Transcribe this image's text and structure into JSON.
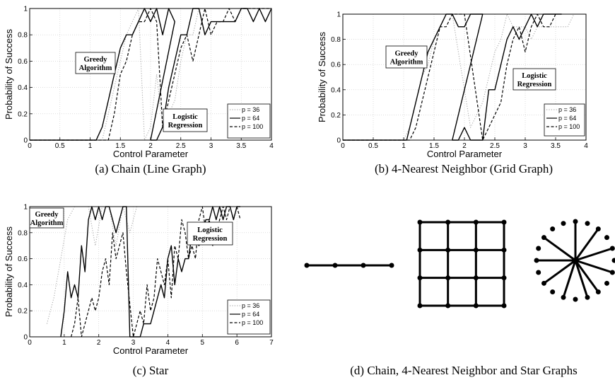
{
  "chart_data": [
    {
      "type": "line",
      "xlabel": "Control Parameter",
      "ylabel": "Probability of Success",
      "xlim": [
        0,
        4
      ],
      "ylim": [
        0,
        1
      ],
      "xticks": [
        "0",
        "0.5",
        "1",
        "1.5",
        "2",
        "2.5",
        "3",
        "3.5",
        "4"
      ],
      "yticks": [
        "0",
        "0.2",
        "0.4",
        "0.6",
        "0.8",
        "1"
      ],
      "grid": true,
      "legend_position": "bottom-right",
      "caption": "(a) Chain (Line Graph)",
      "annotations": [
        "Greedy Algorithm",
        "Logistic Regression"
      ],
      "series": [
        {
          "name": "p = 36",
          "style": "dotted",
          "color": "#aaaaaa",
          "x": [
            0,
            1.2,
            1.3,
            1.4,
            1.5,
            1.6,
            1.7,
            1.8,
            1.9,
            2.0,
            2.1,
            2.2,
            2.3,
            2.4,
            2.5,
            2.6,
            2.7,
            2.8,
            2.9,
            3.0,
            3.1,
            3.2,
            3.3,
            3.4,
            3.5,
            3.6,
            3.7,
            3.8,
            3.9,
            4.0
          ],
          "y": [
            0,
            0,
            0.2,
            0.4,
            0.6,
            0.8,
            0.9,
            1.0,
            0,
            0.1,
            0.5,
            0.1,
            0.2,
            0.3,
            0.6,
            0.8,
            0.8,
            1.0,
            1.0,
            1.0,
            1.0,
            1.0,
            1.0,
            1.0,
            1.0,
            1.0,
            1.0,
            1.0,
            1.0,
            1.0
          ]
        },
        {
          "name": "p = 64",
          "style": "solid",
          "color": "#000000",
          "x": [
            0,
            1.1,
            1.2,
            1.3,
            1.4,
            1.5,
            1.6,
            1.7,
            1.8,
            1.9,
            2.0,
            2.1,
            2.2,
            2.3,
            2.4,
            2.0,
            2.1,
            2.2,
            2.3,
            2.4,
            2.5,
            2.6,
            2.7,
            2.8,
            2.9,
            3.0,
            3.1,
            3.2,
            3.3,
            3.4,
            3.5,
            3.6,
            3.7,
            3.8,
            3.9,
            4.0
          ],
          "y": [
            0,
            0,
            0.1,
            0.3,
            0.5,
            0.7,
            0.8,
            0.8,
            0.9,
            1.0,
            0.9,
            1.0,
            0.8,
            1.0,
            0.9,
            0,
            0,
            0.1,
            0.4,
            0.6,
            0.8,
            0.8,
            1.0,
            1.0,
            0.8,
            0.9,
            0.9,
            0.9,
            0.9,
            0.9,
            1.0,
            1.0,
            0.9,
            1.0,
            0.9,
            1.0
          ]
        },
        {
          "name": "p = 100",
          "style": "dashed",
          "color": "#000000",
          "x": [
            0,
            1.3,
            1.4,
            1.5,
            1.6,
            1.7,
            1.8,
            1.9,
            2.0,
            2.1,
            2.2,
            2.3,
            2.4,
            2.5,
            2.6,
            2.7,
            2.8,
            2.9,
            3.0,
            3.1,
            3.2,
            3.3,
            3.4,
            3.5,
            3.6,
            3.7,
            3.8,
            3.9,
            4.0
          ],
          "y": [
            0,
            0,
            0.2,
            0.5,
            0.6,
            0.8,
            0.9,
            0.9,
            1.0,
            0.9,
            0.1,
            0.3,
            0.5,
            0.7,
            0.8,
            0.6,
            0.8,
            1.0,
            0.8,
            0.9,
            0.9,
            1.0,
            0.9,
            1.0,
            1.0,
            1.0,
            1.0,
            1.0,
            1.0
          ]
        }
      ]
    },
    {
      "type": "line",
      "xlabel": "Control Parameter",
      "ylabel": "Probability of Success",
      "xlim": [
        0,
        4
      ],
      "ylim": [
        0,
        1
      ],
      "xticks": [
        "0",
        "0.5",
        "1",
        "1.5",
        "2",
        "2.5",
        "3",
        "3.5",
        "4"
      ],
      "yticks": [
        "0",
        "0.2",
        "0.4",
        "0.6",
        "0.8",
        "1"
      ],
      "grid": true,
      "legend_position": "bottom-right",
      "caption": "(b) 4-Nearest Neighbor (Grid Graph)",
      "annotations": [
        "Greedy Algorithm",
        "Logistic Regression"
      ],
      "series": [
        {
          "name": "p = 36",
          "style": "dotted",
          "color": "#aaaaaa",
          "x": [
            0,
            1.0,
            1.1,
            1.2,
            1.3,
            1.4,
            1.5,
            1.6,
            1.7,
            1.8,
            2.1,
            2.2,
            2.3,
            2.4,
            2.5,
            2.6,
            2.7,
            2.8,
            2.9,
            3.0,
            3.1,
            3.2,
            3.3,
            3.4,
            3.5,
            3.6,
            3.7,
            3.8,
            3.9,
            4.0
          ],
          "y": [
            0,
            0,
            0.1,
            0.3,
            0.5,
            0.6,
            0.8,
            0.9,
            1.0,
            1.0,
            0.1,
            0.2,
            0.3,
            0.5,
            0.7,
            0.8,
            1.0,
            0.9,
            0.9,
            0.9,
            0.8,
            0.9,
            0.9,
            0.9,
            0.9,
            0.9,
            0.9,
            1.0,
            1.0,
            1.0
          ]
        },
        {
          "name": "p = 64",
          "style": "solid",
          "color": "#000000",
          "x": [
            0,
            1.05,
            1.1,
            1.2,
            1.3,
            1.4,
            1.5,
            1.6,
            1.7,
            1.8,
            1.9,
            2.0,
            2.1,
            2.2,
            2.3,
            1.8,
            1.9,
            2.0,
            2.1,
            2.2,
            2.3,
            2.4,
            2.5,
            2.6,
            2.7,
            2.8,
            2.9,
            3.0,
            3.1,
            3.2,
            3.3,
            3.4,
            3.5,
            3.6
          ],
          "y": [
            0,
            0,
            0.1,
            0.3,
            0.5,
            0.7,
            0.8,
            0.9,
            1.0,
            1.0,
            0.9,
            0.9,
            1.0,
            1.0,
            1.0,
            0,
            0,
            0.1,
            0,
            0,
            0,
            0.4,
            0.4,
            0.6,
            0.8,
            0.9,
            0.8,
            0.9,
            1.0,
            0.9,
            1.0,
            1.0,
            1.0,
            1.0
          ]
        },
        {
          "name": "p = 100",
          "style": "dashed",
          "color": "#000000",
          "x": [
            0,
            1.1,
            1.2,
            1.3,
            1.4,
            1.5,
            1.6,
            1.7,
            1.8,
            1.9,
            2.0,
            2.3,
            2.4,
            2.5,
            2.6,
            2.7,
            2.8,
            2.9,
            3.0,
            3.1,
            3.2,
            3.3,
            3.4,
            3.5
          ],
          "y": [
            0,
            0,
            0.1,
            0.3,
            0.5,
            0.7,
            0.9,
            0.9,
            1.0,
            1.0,
            1.0,
            0,
            0.1,
            0.2,
            0.3,
            0.6,
            0.8,
            0.9,
            0.7,
            0.9,
            1.0,
            0.9,
            0.9,
            1.0
          ]
        }
      ]
    },
    {
      "type": "line",
      "xlabel": "Control Parameter",
      "ylabel": "Probability of Success",
      "xlim": [
        0,
        7
      ],
      "ylim": [
        0,
        1
      ],
      "xticks": [
        "0",
        "1",
        "2",
        "3",
        "4",
        "5",
        "6",
        "7"
      ],
      "yticks": [
        "0",
        "0.2",
        "0.4",
        "0.6",
        "0.8",
        "1"
      ],
      "grid": true,
      "legend_position": "bottom-right",
      "caption": "(c) Star",
      "annotations": [
        "Greedy Algorithm",
        "Logistic Regression"
      ],
      "series": [
        {
          "name": "p = 36",
          "style": "dotted",
          "color": "#aaaaaa",
          "x": [
            0.5,
            0.7,
            0.9,
            1.1,
            1.3,
            1.5,
            1.7,
            1.9,
            2.1,
            2.3,
            2.5,
            2.7,
            2.9,
            3.1
          ],
          "y": [
            0.1,
            0.3,
            0.6,
            0.9,
            1.0,
            1.0,
            1.0,
            0.7,
            1.0,
            1.0,
            0.7,
            1.0,
            0.8,
            1.0
          ]
        },
        {
          "name": "p = 64",
          "style": "solid",
          "color": "#000000",
          "x": [
            0.9,
            1.0,
            1.1,
            1.2,
            1.3,
            1.4,
            1.5,
            1.6,
            1.7,
            1.8,
            1.9,
            2.0,
            2.1,
            2.2,
            2.3,
            2.4,
            2.5,
            2.6,
            2.7,
            2.8,
            2.9,
            3.0,
            3.1,
            3.2,
            3.3,
            3.4,
            3.5,
            3.6,
            3.7,
            3.8,
            3.9,
            4.0,
            4.1,
            4.2,
            4.3,
            4.4,
            4.5,
            4.6,
            4.7,
            4.8,
            4.9,
            5.0,
            5.1,
            5.2,
            5.3,
            5.4,
            5.5,
            5.6,
            5.7,
            5.8,
            5.9,
            6.0,
            6.1
          ],
          "y": [
            0,
            0.2,
            0.5,
            0.3,
            0.4,
            0.3,
            0.7,
            0.5,
            0.9,
            1.0,
            0.9,
            1.0,
            0.9,
            1.0,
            1.0,
            0.9,
            0.8,
            0.9,
            1.0,
            1.0,
            0,
            0,
            0,
            0,
            0.1,
            0.1,
            0.1,
            0.2,
            0.3,
            0.4,
            0.3,
            0.6,
            0.7,
            0.4,
            0.6,
            0.5,
            0.6,
            0.6,
            0.8,
            0.8,
            0.7,
            0.8,
            0.9,
            0.9,
            1.0,
            0.9,
            1.0,
            0.9,
            1.0,
            1.0,
            0.9,
            1.0,
            1.0
          ]
        },
        {
          "name": "p = 100",
          "style": "dashed",
          "color": "#000000",
          "x": [
            1.2,
            1.3,
            1.4,
            1.5,
            1.6,
            1.7,
            1.8,
            1.9,
            2.0,
            2.1,
            2.2,
            2.3,
            2.4,
            2.5,
            2.6,
            2.7,
            2.8,
            3.0,
            3.1,
            3.2,
            3.3,
            3.4,
            3.5,
            3.6,
            3.7,
            3.8,
            3.9,
            4.0,
            4.1,
            4.2,
            4.3,
            4.4,
            4.5,
            4.6,
            4.7,
            4.8,
            4.9,
            5.0,
            5.1,
            5.2,
            5.3,
            5.4,
            5.5,
            5.6,
            5.7,
            5.8,
            5.9,
            6.0,
            6.1
          ],
          "y": [
            0,
            0.1,
            0.3,
            0,
            0.1,
            0.2,
            0.3,
            0.2,
            0.3,
            0.5,
            0.6,
            0.4,
            0.8,
            0.6,
            0.7,
            0.8,
            0.5,
            0,
            0.1,
            0.2,
            0.1,
            0.4,
            0.2,
            0.3,
            0.6,
            0.5,
            0.4,
            0.6,
            0.3,
            0.7,
            0.6,
            0.9,
            0.8,
            0.6,
            0.7,
            0.6,
            0.9,
            1.0,
            0.8,
            0.9,
            0.7,
            0.8,
            0.9,
            1.0,
            0.9,
            1.0,
            0.9,
            1.0,
            0.9
          ]
        }
      ]
    }
  ],
  "graphs": {
    "caption": "(d) Chain, 4-Nearest Neighbor and Star Graphs",
    "chain_nodes": 4,
    "grid_size": 4,
    "star_leaves": 20
  }
}
